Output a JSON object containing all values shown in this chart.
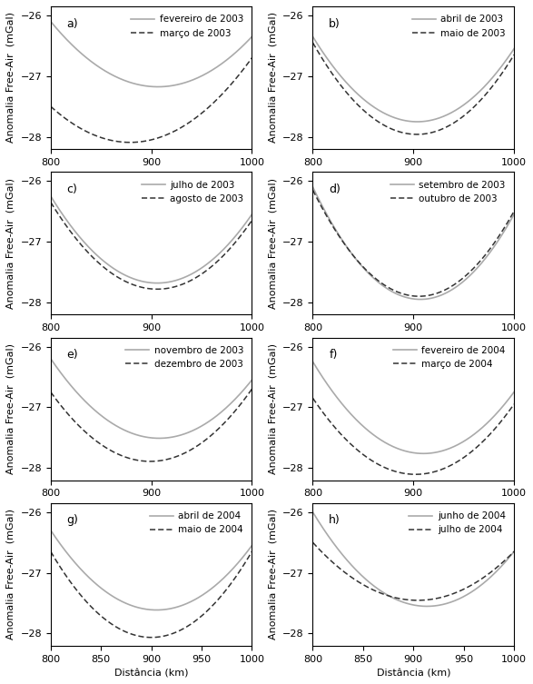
{
  "panels": [
    {
      "label": "a)",
      "line1_legend": "fevereiro de 2003",
      "line2_legend": "março de 2003",
      "line1_min_x": 890,
      "line1_min_y": -27.15,
      "line2_min_x": 900,
      "line2_min_y": -28.05,
      "line1_left_y": -26.1,
      "line2_left_y": -27.5,
      "line1_right_y": -26.35,
      "line2_right_y": -26.7
    },
    {
      "label": "b)",
      "line1_legend": "abril de 2003",
      "line2_legend": "maio de 2003",
      "line1_min_x": 900,
      "line1_min_y": -27.75,
      "line2_min_x": 895,
      "line2_min_y": -27.95,
      "line1_left_y": -26.35,
      "line2_left_y": -26.45,
      "line1_right_y": -26.55,
      "line2_right_y": -26.65
    },
    {
      "label": "c)",
      "line1_legend": "julho de 2003",
      "line2_legend": "agosto de 2003",
      "line1_min_x": 890,
      "line1_min_y": -27.65,
      "line2_min_x": 890,
      "line2_min_y": -27.75,
      "line1_left_y": -26.25,
      "line2_left_y": -26.35,
      "line1_right_y": -26.55,
      "line2_right_y": -26.65
    },
    {
      "label": "d)",
      "line1_legend": "setembro de 2003",
      "line2_legend": "outubro de 2003",
      "line1_min_x": 905,
      "line1_min_y": -27.95,
      "line2_min_x": 905,
      "line2_min_y": -27.9,
      "line1_left_y": -26.1,
      "line2_left_y": -26.15,
      "line1_right_y": -26.55,
      "line2_right_y": -26.5
    },
    {
      "label": "e)",
      "line1_legend": "novembro de 2003",
      "line2_legend": "dezembro de 2003",
      "line1_min_x": 870,
      "line1_min_y": -27.35,
      "line2_min_x": 880,
      "line2_min_y": -27.85,
      "line1_left_y": -26.2,
      "line2_left_y": -26.75,
      "line1_right_y": -26.55,
      "line2_right_y": -26.7
    },
    {
      "label": "f)",
      "line1_legend": "fevereiro de 2004",
      "line2_legend": "março de 2004",
      "line1_min_x": 900,
      "line1_min_y": -27.75,
      "line2_min_x": 895,
      "line2_min_y": -28.1,
      "line1_left_y": -26.25,
      "line2_left_y": -26.85,
      "line1_right_y": -26.75,
      "line2_right_y": -26.95
    },
    {
      "label": "g)",
      "line1_legend": "abril de 2004",
      "line2_legend": "maio de 2004",
      "line1_min_x": 895,
      "line1_min_y": -27.6,
      "line2_min_x": 890,
      "line2_min_y": -28.05,
      "line1_left_y": -26.3,
      "line2_left_y": -26.65,
      "line1_right_y": -26.55,
      "line2_right_y": -26.65
    },
    {
      "label": "h)",
      "line1_legend": "junho de 2004",
      "line2_legend": "julho de 2004",
      "line1_min_x": 910,
      "line1_min_y": -27.55,
      "line2_min_x": 910,
      "line2_min_y": -27.45,
      "line1_left_y": -26.0,
      "line2_left_y": -26.5,
      "line1_right_y": -26.65,
      "line2_right_y": -26.65
    }
  ],
  "xlim": [
    800,
    1000
  ],
  "ylim": [
    -28.2,
    -25.85
  ],
  "yticks": [
    -26,
    -27,
    -28
  ],
  "xticks_top": [
    800,
    900,
    1000
  ],
  "xticks_bottom": [
    800,
    850,
    900,
    950,
    1000
  ],
  "ylabel": "Anomalia Free-Air  (mGal)",
  "xlabel": "Distância (km)",
  "color_line1": "#aaaaaa",
  "color_line2": "#333333",
  "linewidth1": 1.2,
  "linewidth2": 1.1,
  "legend_fontsize": 7.5,
  "label_fontsize": 9,
  "tick_fontsize": 8,
  "axis_label_fontsize": 8
}
